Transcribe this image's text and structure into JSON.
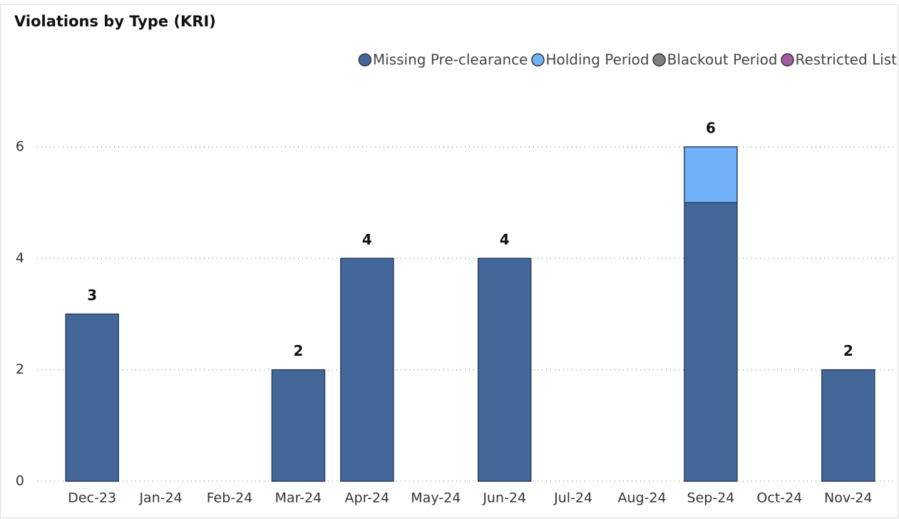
{
  "chart_data": {
    "type": "stacked_bar",
    "title": "Violations by Type (KRI)",
    "categories": [
      "Dec-23",
      "Jan-24",
      "Feb-24",
      "Mar-24",
      "Apr-24",
      "May-24",
      "Jun-24",
      "Jul-24",
      "Aug-24",
      "Sep-24",
      "Oct-24",
      "Nov-24"
    ],
    "series": [
      {
        "name": "Missing Pre-clearance",
        "color": "#44679a",
        "values": [
          3,
          0,
          0,
          2,
          4,
          0,
          4,
          0,
          0,
          5,
          0,
          2
        ]
      },
      {
        "name": "Holding Period",
        "color": "#71b1fa",
        "values": [
          0,
          0,
          0,
          0,
          0,
          0,
          0,
          0,
          0,
          1,
          0,
          0
        ]
      },
      {
        "name": "Blackout Period",
        "color": "#808080",
        "values": [
          0,
          0,
          0,
          0,
          0,
          0,
          0,
          0,
          0,
          0,
          0,
          0
        ]
      },
      {
        "name": "Restricted List",
        "color": "#a05ca5",
        "values": [
          0,
          0,
          0,
          0,
          0,
          0,
          0,
          0,
          0,
          0,
          0,
          0
        ]
      }
    ],
    "totals": [
      3,
      null,
      null,
      2,
      4,
      null,
      4,
      null,
      null,
      6,
      null,
      2
    ],
    "ylim": [
      0,
      6
    ],
    "yticks": [
      0,
      2,
      4,
      6
    ],
    "grid": true
  }
}
